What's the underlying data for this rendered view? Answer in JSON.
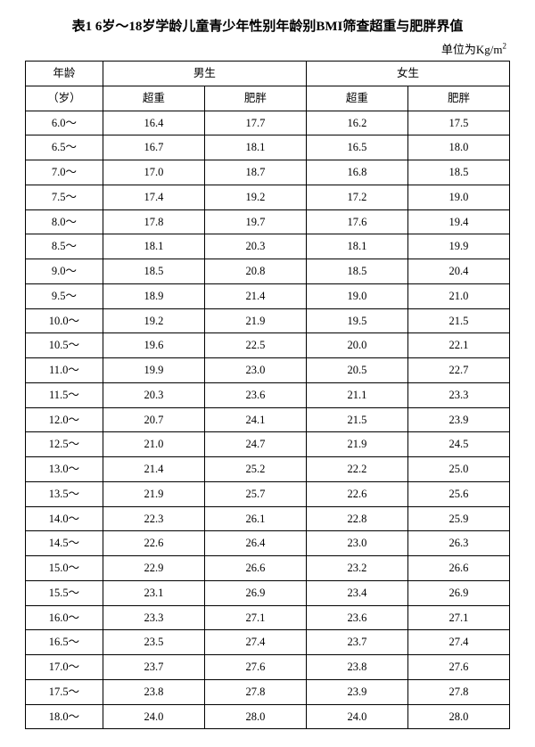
{
  "title": "表1 6岁～18岁学龄儿童青少年性别年龄别BMI筛查超重与肥胖界值",
  "unit_prefix": "单位为Kg/m",
  "unit_exp": "2",
  "headers": {
    "age_top": "年龄",
    "age_bottom": "（岁）",
    "male": "男生",
    "female": "女生",
    "overweight": "超重",
    "obese": "肥胖"
  },
  "rows": [
    {
      "age": "6.0～",
      "m_ow": "16.4",
      "m_ob": "17.7",
      "f_ow": "16.2",
      "f_ob": "17.5"
    },
    {
      "age": "6.5～",
      "m_ow": "16.7",
      "m_ob": "18.1",
      "f_ow": "16.5",
      "f_ob": "18.0"
    },
    {
      "age": "7.0～",
      "m_ow": "17.0",
      "m_ob": "18.7",
      "f_ow": "16.8",
      "f_ob": "18.5"
    },
    {
      "age": "7.5～",
      "m_ow": "17.4",
      "m_ob": "19.2",
      "f_ow": "17.2",
      "f_ob": "19.0"
    },
    {
      "age": "8.0～",
      "m_ow": "17.8",
      "m_ob": "19.7",
      "f_ow": "17.6",
      "f_ob": "19.4"
    },
    {
      "age": "8.5～",
      "m_ow": "18.1",
      "m_ob": "20.3",
      "f_ow": "18.1",
      "f_ob": "19.9"
    },
    {
      "age": "9.0～",
      "m_ow": "18.5",
      "m_ob": "20.8",
      "f_ow": "18.5",
      "f_ob": "20.4"
    },
    {
      "age": "9.5～",
      "m_ow": "18.9",
      "m_ob": "21.4",
      "f_ow": "19.0",
      "f_ob": "21.0"
    },
    {
      "age": "10.0～",
      "m_ow": "19.2",
      "m_ob": "21.9",
      "f_ow": "19.5",
      "f_ob": "21.5"
    },
    {
      "age": "10.5～",
      "m_ow": "19.6",
      "m_ob": "22.5",
      "f_ow": "20.0",
      "f_ob": "22.1"
    },
    {
      "age": "11.0～",
      "m_ow": "19.9",
      "m_ob": "23.0",
      "f_ow": "20.5",
      "f_ob": "22.7"
    },
    {
      "age": "11.5～",
      "m_ow": "20.3",
      "m_ob": "23.6",
      "f_ow": "21.1",
      "f_ob": "23.3"
    },
    {
      "age": "12.0～",
      "m_ow": "20.7",
      "m_ob": "24.1",
      "f_ow": "21.5",
      "f_ob": "23.9"
    },
    {
      "age": "12.5～",
      "m_ow": "21.0",
      "m_ob": "24.7",
      "f_ow": "21.9",
      "f_ob": "24.5"
    },
    {
      "age": "13.0～",
      "m_ow": "21.4",
      "m_ob": "25.2",
      "f_ow": "22.2",
      "f_ob": "25.0"
    },
    {
      "age": "13.5～",
      "m_ow": "21.9",
      "m_ob": "25.7",
      "f_ow": "22.6",
      "f_ob": "25.6"
    },
    {
      "age": "14.0～",
      "m_ow": "22.3",
      "m_ob": "26.1",
      "f_ow": "22.8",
      "f_ob": "25.9"
    },
    {
      "age": "14.5～",
      "m_ow": "22.6",
      "m_ob": "26.4",
      "f_ow": "23.0",
      "f_ob": "26.3"
    },
    {
      "age": "15.0～",
      "m_ow": "22.9",
      "m_ob": "26.6",
      "f_ow": "23.2",
      "f_ob": "26.6"
    },
    {
      "age": "15.5～",
      "m_ow": "23.1",
      "m_ob": "26.9",
      "f_ow": "23.4",
      "f_ob": "26.9"
    },
    {
      "age": "16.0～",
      "m_ow": "23.3",
      "m_ob": "27.1",
      "f_ow": "23.6",
      "f_ob": "27.1"
    },
    {
      "age": "16.5～",
      "m_ow": "23.5",
      "m_ob": "27.4",
      "f_ow": "23.7",
      "f_ob": "27.4"
    },
    {
      "age": "17.0～",
      "m_ow": "23.7",
      "m_ob": "27.6",
      "f_ow": "23.8",
      "f_ob": "27.6"
    },
    {
      "age": "17.5～",
      "m_ow": "23.8",
      "m_ob": "27.8",
      "f_ow": "23.9",
      "f_ob": "27.8"
    },
    {
      "age": "18.0～",
      "m_ow": "24.0",
      "m_ob": "28.0",
      "f_ow": "24.0",
      "f_ob": "28.0"
    }
  ]
}
